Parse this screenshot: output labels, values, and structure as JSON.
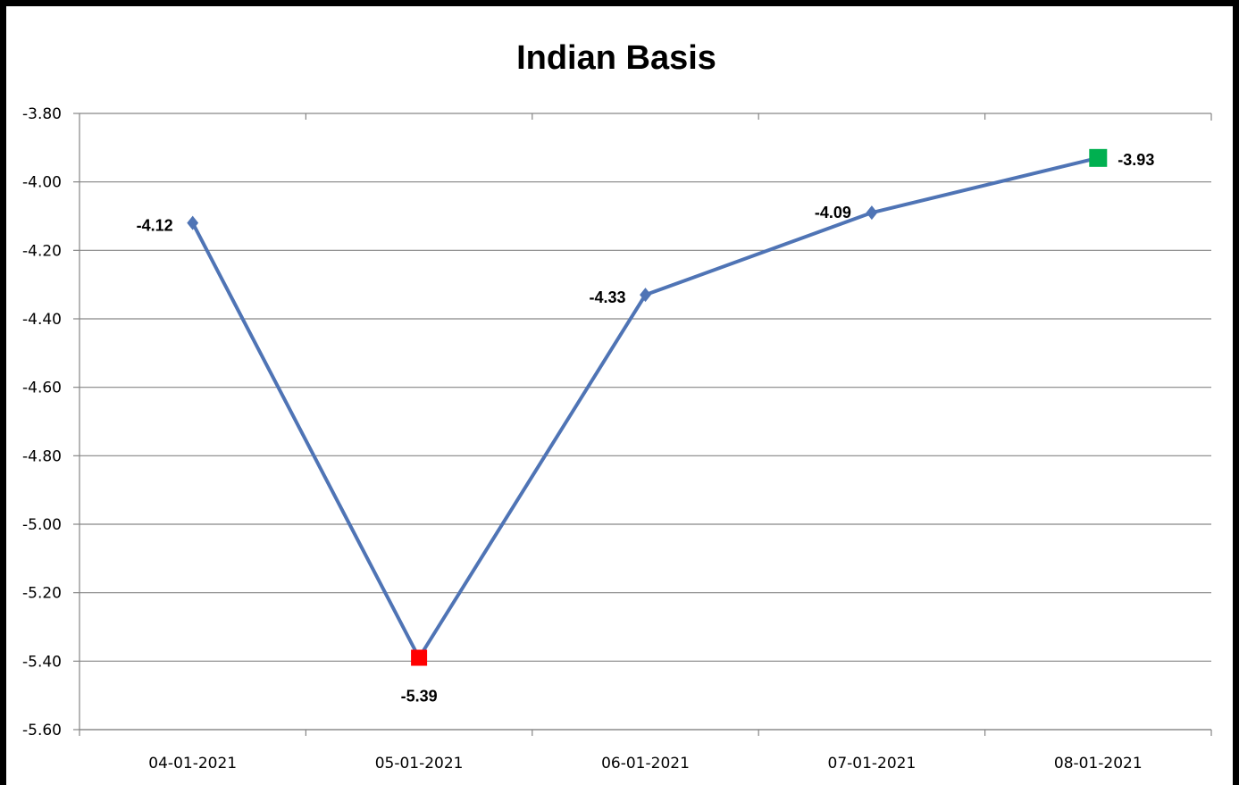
{
  "chart_data": {
    "type": "line",
    "title": "Indian Basis",
    "xlabel": "",
    "ylabel": "",
    "categories": [
      "04-01-2021",
      "05-01-2021",
      "06-01-2021",
      "07-01-2021",
      "08-01-2021"
    ],
    "series": [
      {
        "values": [
          -4.12,
          -5.39,
          -4.33,
          -4.09,
          -3.93
        ],
        "labels": [
          "-4.12",
          "-5.39",
          "-4.33",
          "-4.09",
          "-3.93"
        ],
        "color": "#4F74B5"
      }
    ],
    "ylim": [
      -5.6,
      -3.8
    ],
    "yticks": [
      "-3.80",
      "-4.00",
      "-4.20",
      "-4.40",
      "-4.60",
      "-4.80",
      "-5.00",
      "-5.20",
      "-5.40",
      "-5.60"
    ],
    "grid": true,
    "legend": "none",
    "highlights": {
      "min_marker_color": "#FF0000",
      "max_marker_color": "#00B050"
    }
  }
}
